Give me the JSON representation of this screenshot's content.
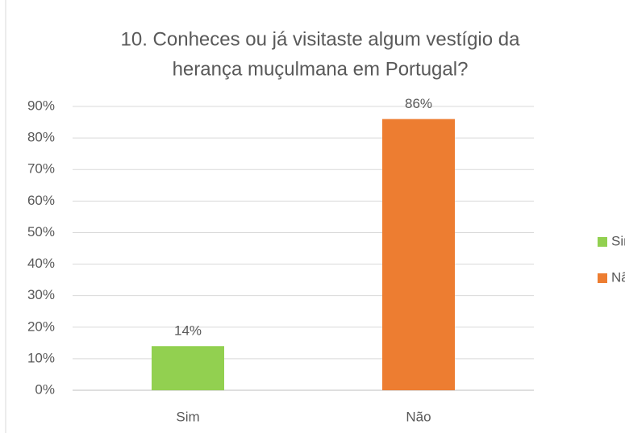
{
  "chart_data": {
    "type": "bar",
    "title": [
      "10. Conheces ou já visitaste algum vestígio da",
      "herança muçulmana em Portugal?"
    ],
    "categories": [
      "Sim",
      "Não"
    ],
    "series": [
      {
        "name": "Sim",
        "color": "#92d050",
        "values": [
          14,
          null
        ],
        "value_labels": [
          "14%",
          null
        ]
      },
      {
        "name": "Não",
        "color": "#ed7d31",
        "values": [
          null,
          86
        ],
        "value_labels": [
          null,
          "86%"
        ]
      }
    ],
    "ylim": [
      0,
      90
    ],
    "yticks": [
      {
        "value": 0,
        "label": "0%"
      },
      {
        "value": 10,
        "label": "10%"
      },
      {
        "value": 20,
        "label": "20%"
      },
      {
        "value": 30,
        "label": "30%"
      },
      {
        "value": 40,
        "label": "40%"
      },
      {
        "value": 50,
        "label": "50%"
      },
      {
        "value": 60,
        "label": "60%"
      },
      {
        "value": 70,
        "label": "70%"
      },
      {
        "value": 80,
        "label": "80%"
      },
      {
        "value": 90,
        "label": "90%"
      }
    ],
    "grid": true,
    "legend": "right"
  }
}
